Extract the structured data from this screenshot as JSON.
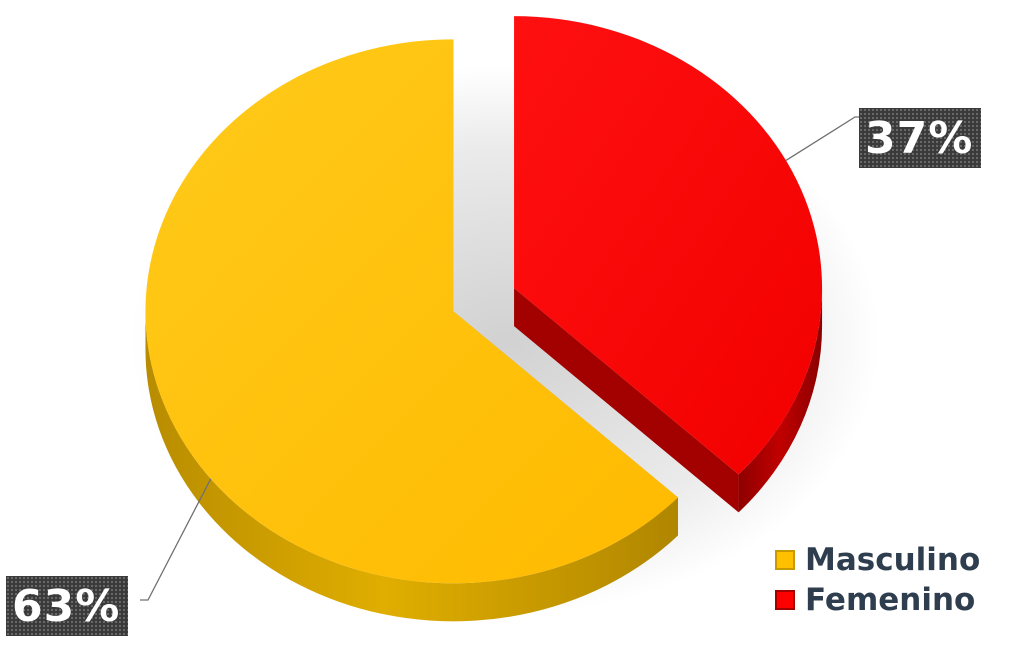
{
  "chart_data": {
    "type": "pie",
    "categories": [
      "Masculino",
      "Femenino"
    ],
    "values": [
      63,
      37
    ],
    "unit": "%",
    "data_labels": [
      "63%",
      "37%"
    ],
    "colors": [
      "#FFC000",
      "#FF0000"
    ],
    "side_colors": [
      "#C79A00",
      "#A30000"
    ],
    "legend": {
      "placement": "bottom-right",
      "entries": [
        {
          "label": "Masculino",
          "color": "#FFC000"
        },
        {
          "label": "Femenino",
          "color": "#FF0000"
        }
      ]
    },
    "style": "3d-exploded",
    "title": ""
  }
}
